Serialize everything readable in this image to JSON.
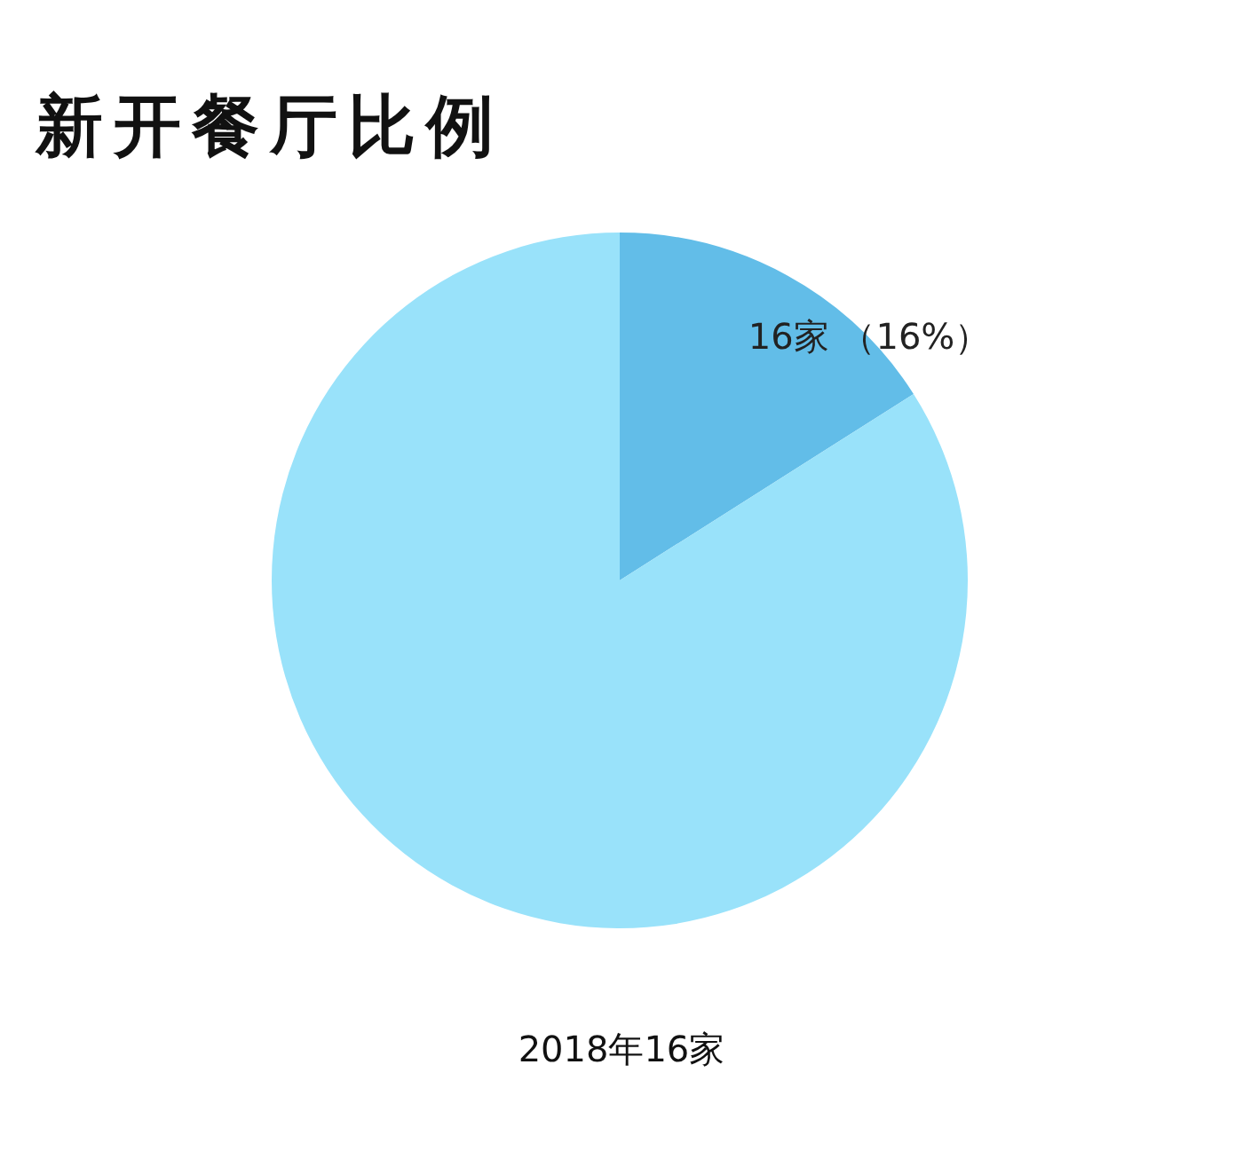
{
  "chart_data": {
    "type": "pie",
    "title": "新开餐厅比例",
    "categories": [
      null,
      null
    ],
    "values": [
      16,
      84
    ],
    "colors": [
      "#62bde8",
      "#99e2fa"
    ],
    "value_labels": [
      "16家 （16%）",
      null
    ],
    "legend": false,
    "annotations": [
      "2018年16家"
    ]
  }
}
